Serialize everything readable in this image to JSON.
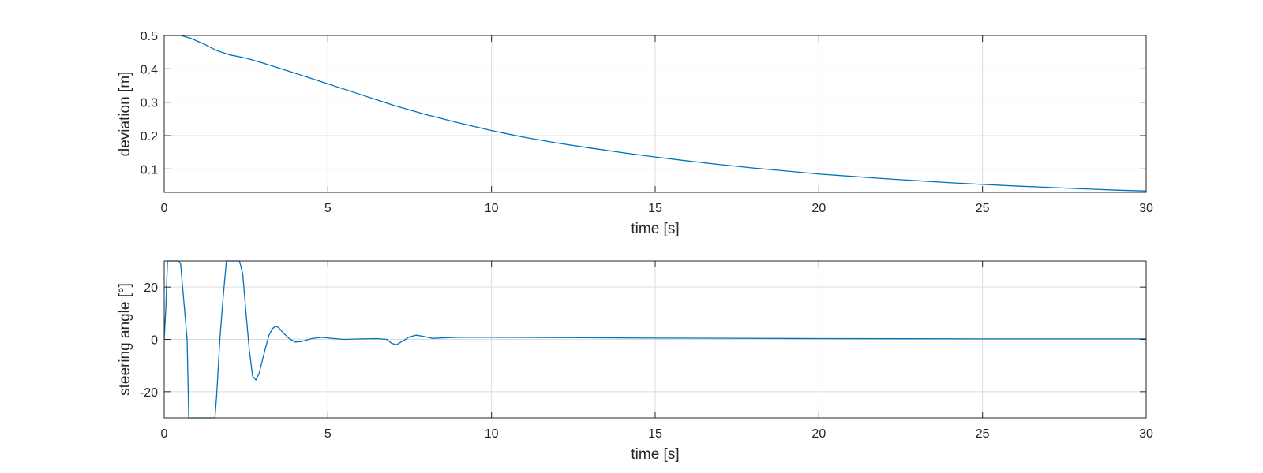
{
  "chart_data": [
    {
      "type": "line",
      "xlabel": "time [s]",
      "ylabel": "deviation [m]",
      "xlim": [
        0,
        30
      ],
      "ylim": [
        0.03,
        0.5
      ],
      "xticks": [
        0,
        5,
        10,
        15,
        20,
        25,
        30
      ],
      "yticks": [
        0.1,
        0.2,
        0.3,
        0.4,
        0.5
      ],
      "grid": true,
      "line_color": "#0072BD",
      "series": [
        {
          "x": [
            0,
            0.2,
            0.5,
            0.8,
            1.2,
            1.6,
            2.0,
            2.5,
            3,
            4,
            5,
            6,
            7,
            8,
            9,
            10,
            11,
            12,
            13,
            14,
            15,
            16,
            17,
            18,
            19,
            20,
            21,
            22,
            23,
            24,
            25,
            26,
            27,
            28,
            29,
            30
          ],
          "values": [
            0.5,
            0.5,
            0.5,
            0.492,
            0.475,
            0.455,
            0.442,
            0.432,
            0.418,
            0.387,
            0.355,
            0.323,
            0.291,
            0.263,
            0.238,
            0.215,
            0.195,
            0.178,
            0.163,
            0.149,
            0.136,
            0.124,
            0.113,
            0.103,
            0.094,
            0.085,
            0.078,
            0.071,
            0.065,
            0.059,
            0.054,
            0.049,
            0.045,
            0.041,
            0.037,
            0.034
          ]
        }
      ]
    },
    {
      "type": "line",
      "xlabel": "time [s]",
      "ylabel": "steering angle [°]",
      "xlim": [
        0,
        30
      ],
      "ylim": [
        -30,
        30
      ],
      "xticks": [
        0,
        5,
        10,
        15,
        20,
        25,
        30
      ],
      "yticks": [
        -20,
        0,
        20
      ],
      "grid": true,
      "line_color": "#0072BD",
      "series": [
        {
          "x": [
            0,
            0.05,
            0.1,
            0.45,
            0.5,
            0.7,
            0.75,
            1.55,
            1.6,
            1.7,
            1.8,
            1.9,
            2.0,
            2.3,
            2.4,
            2.5,
            2.6,
            2.7,
            2.8,
            2.9,
            3.0,
            3.1,
            3.2,
            3.3,
            3.4,
            3.5,
            3.6,
            3.8,
            4.0,
            4.2,
            4.5,
            4.8,
            5.2,
            5.5,
            6.0,
            6.5,
            6.8,
            6.95,
            7.1,
            7.3,
            7.5,
            7.7,
            7.9,
            8.2,
            8.6,
            9,
            10,
            15,
            20,
            25,
            30
          ],
          "values": [
            0,
            12,
            30,
            30,
            29,
            0,
            -30,
            -30,
            -22,
            0,
            16,
            30,
            30,
            30,
            25,
            10,
            -4,
            -14,
            -15.5,
            -13,
            -8,
            -3,
            1.5,
            4,
            5,
            4.5,
            3,
            0.5,
            -1,
            -0.8,
            0.3,
            0.8,
            0.3,
            0,
            0.2,
            0.3,
            0,
            -1.5,
            -2,
            -0.5,
            1,
            1.6,
            1.2,
            0.4,
            0.6,
            0.8,
            0.8,
            0.5,
            0.3,
            0.2,
            0.2
          ]
        }
      ]
    }
  ]
}
